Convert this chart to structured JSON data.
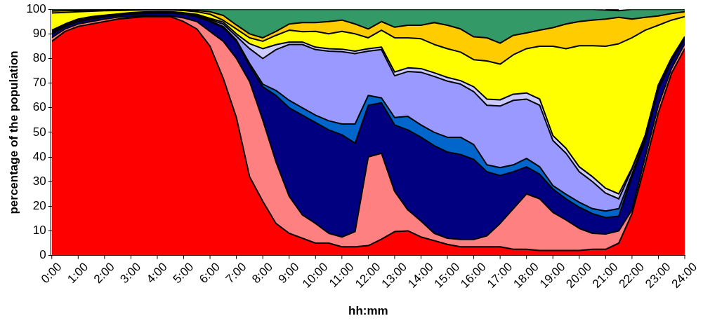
{
  "chart_data": {
    "type": "area",
    "stacked": true,
    "xlabel": "hh:mm",
    "ylabel": "percentage of the population",
    "x": [
      0,
      0.5,
      1,
      1.5,
      2,
      2.5,
      3,
      3.5,
      4,
      4.5,
      5,
      5.5,
      6,
      6.5,
      7,
      7.5,
      8,
      8.5,
      9,
      9.5,
      10,
      10.5,
      11,
      11.5,
      12,
      12.5,
      13,
      13.5,
      14,
      14.5,
      15,
      15.5,
      16,
      16.5,
      17,
      17.5,
      18,
      18.5,
      19,
      19.5,
      20,
      20.5,
      21,
      21.5,
      22,
      22.5,
      23,
      23.5,
      24
    ],
    "xlim": [
      0,
      24
    ],
    "xticks": [
      {
        "value": 0,
        "label": "0:00"
      },
      {
        "value": 1,
        "label": "1:00"
      },
      {
        "value": 2,
        "label": "2:00"
      },
      {
        "value": 3,
        "label": "3:00"
      },
      {
        "value": 4,
        "label": "4:00"
      },
      {
        "value": 5,
        "label": "5:00"
      },
      {
        "value": 6,
        "label": "6:00"
      },
      {
        "value": 7,
        "label": "7:00"
      },
      {
        "value": 8,
        "label": "8:00"
      },
      {
        "value": 9,
        "label": "9:00"
      },
      {
        "value": 10,
        "label": "10:00"
      },
      {
        "value": 11,
        "label": "11:00"
      },
      {
        "value": 12,
        "label": "12:00"
      },
      {
        "value": 13,
        "label": "13:00"
      },
      {
        "value": 14,
        "label": "14:00"
      },
      {
        "value": 15,
        "label": "15:00"
      },
      {
        "value": 16,
        "label": "16:00"
      },
      {
        "value": 17,
        "label": "17:00"
      },
      {
        "value": 18,
        "label": "18:00"
      },
      {
        "value": 19,
        "label": "19:00"
      },
      {
        "value": 20,
        "label": "20:00"
      },
      {
        "value": 21,
        "label": "21:00"
      },
      {
        "value": 22,
        "label": "22:00"
      },
      {
        "value": 23,
        "label": "23:00"
      },
      {
        "value": 24,
        "label": "24:00"
      }
    ],
    "ylim": [
      0,
      100
    ],
    "yticks": [
      0,
      10,
      20,
      30,
      40,
      50,
      60,
      70,
      80,
      90,
      100
    ],
    "grid": false,
    "legend": false,
    "marker": "none",
    "series": [
      {
        "color": "#ff0000",
        "values": [
          87,
          91,
          93,
          94,
          95,
          96,
          96.5,
          97,
          97,
          97,
          95,
          92,
          85,
          72,
          56,
          32,
          22,
          13,
          9,
          7,
          5,
          5,
          3.5,
          3.5,
          4,
          6.6,
          9.7,
          10,
          7.5,
          6,
          4.5,
          3.5,
          3.5,
          3.5,
          3.5,
          2.5,
          2.5,
          2,
          2,
          2,
          2,
          2.5,
          2.5,
          5,
          17,
          37,
          58,
          74,
          84
        ]
      },
      {
        "color": "#ff8080",
        "values": [
          1.5,
          1,
          1,
          1,
          1,
          0.8,
          0.5,
          0.3,
          0.3,
          0.3,
          1.5,
          3,
          6,
          15,
          24,
          38.6,
          33,
          25,
          15,
          9.5,
          8,
          4,
          4,
          6.2,
          36,
          34.9,
          16.3,
          8.5,
          6.5,
          3,
          2.5,
          3,
          3,
          4.5,
          9.5,
          16.5,
          22.5,
          21,
          15.5,
          12.4,
          9,
          6.5,
          6.2,
          5,
          1.5,
          3,
          3,
          2,
          2
        ]
      },
      {
        "color": "#000080",
        "values": [
          1.5,
          1,
          1,
          1,
          1,
          0.7,
          1,
          1,
          1.2,
          1.2,
          1.5,
          2,
          4,
          5.5,
          7,
          6.4,
          13.5,
          27,
          36,
          40.5,
          41,
          42,
          41.5,
          35.9,
          21,
          20.5,
          27,
          32.5,
          34,
          35.6,
          35,
          34.5,
          32.5,
          26,
          19.5,
          15,
          11,
          10,
          9.5,
          8.6,
          8.6,
          8,
          6.7,
          6,
          13.5,
          6.5,
          6.5,
          3,
          2
        ]
      },
      {
        "color": "#0066cc",
        "values": [
          0.5,
          0.3,
          0.3,
          0.3,
          0.2,
          0.2,
          0.2,
          0.2,
          0.2,
          0.2,
          0.2,
          0.3,
          0.3,
          0.5,
          0.5,
          1,
          1.1,
          2,
          3,
          3,
          3,
          3.7,
          4.4,
          7.8,
          4,
          2,
          3,
          5.5,
          5,
          5.4,
          6,
          7,
          6,
          2.8,
          3.2,
          2.8,
          3.4,
          3,
          1.4,
          1.8,
          2,
          2,
          2.6,
          3,
          1,
          1,
          0.5,
          0.5,
          0.3
        ]
      },
      {
        "color": "#9999ff",
        "values": [
          0.5,
          0.3,
          0.3,
          0.3,
          0.2,
          0.2,
          0.2,
          0.2,
          0.2,
          0.2,
          0.2,
          0.3,
          0.5,
          1,
          1.5,
          6,
          10.4,
          16.6,
          22.7,
          25.7,
          26.6,
          28.3,
          29.4,
          28.6,
          18,
          19.6,
          17,
          18.2,
          21.4,
          22.7,
          22.8,
          21.6,
          21.5,
          24.2,
          25,
          26.2,
          24.1,
          25,
          18.3,
          16.7,
          12.4,
          11,
          7.3,
          4,
          2,
          1,
          1,
          0.5,
          0.3
        ]
      },
      {
        "color": "#ccccff",
        "values": [
          0.5,
          0.4,
          0.4,
          0.4,
          0.2,
          0.2,
          0.2,
          0.2,
          0.1,
          0.1,
          0.2,
          0.3,
          0.5,
          0.8,
          1,
          2,
          4,
          2,
          1,
          1,
          1,
          1,
          1,
          1,
          1,
          1,
          1.5,
          1.5,
          1.5,
          1.5,
          1.5,
          1.4,
          2,
          2.5,
          2.5,
          2.5,
          2.5,
          2.5,
          2,
          2,
          2,
          2,
          2,
          2,
          0.5,
          0.3,
          0.3,
          0.3,
          0.3
        ]
      },
      {
        "color": "#ffff00",
        "values": [
          7,
          4.7,
          3,
          2.2,
          1.8,
          1.4,
          1,
          0.8,
          0.7,
          0.7,
          0.9,
          1.1,
          1.7,
          0.7,
          2,
          2.4,
          3,
          3.8,
          4.8,
          4.2,
          6.4,
          6,
          7.2,
          7,
          4.4,
          6.9,
          13.9,
          12.2,
          12.1,
          11.5,
          11.7,
          11.6,
          11,
          15.5,
          14.5,
          16,
          18,
          21.5,
          36.3,
          40.5,
          49.2,
          53.2,
          57.7,
          61,
          52.9,
          42.7,
          24.2,
          15.3,
          8.1
        ]
      },
      {
        "color": "#ffcc00",
        "values": [
          0.8,
          0.7,
          0.5,
          0.4,
          0.3,
          0.3,
          0.2,
          0.2,
          0.2,
          0.2,
          0.3,
          0.5,
          1,
          2,
          1.6,
          1.6,
          1.4,
          1.6,
          2.5,
          3.7,
          3.6,
          5,
          4.6,
          4,
          3.6,
          3.5,
          4.3,
          5.1,
          5.5,
          8.9,
          9.5,
          9.4,
          9.3,
          9.4,
          8.5,
          7.9,
          6.4,
          6.5,
          7.5,
          10,
          9.8,
          10.4,
          11,
          10.7,
          7.6,
          5.2,
          3.8,
          2.7,
          2
        ]
      },
      {
        "color": "#339966",
        "values": [
          0.7,
          0.6,
          0.5,
          0.4,
          0.3,
          0.2,
          0.2,
          0.1,
          0.1,
          0.1,
          0.2,
          0.5,
          1,
          2.5,
          6.4,
          10,
          11.6,
          9,
          6,
          5.4,
          5.4,
          5,
          4.4,
          6,
          8,
          5,
          7.3,
          6.5,
          6.5,
          5.4,
          6.5,
          8,
          11.2,
          11.6,
          13.8,
          10.6,
          9.6,
          8.5,
          7.5,
          6,
          5,
          4.4,
          3.7,
          2.7,
          4,
          3.3,
          2.7,
          1.7,
          1
        ]
      },
      {
        "color": "#ff00ff",
        "values": [
          null,
          null,
          null,
          null,
          null,
          null,
          null,
          null,
          null,
          null,
          null,
          null,
          null,
          null,
          null,
          null,
          null,
          null,
          null,
          null,
          null,
          null,
          null,
          null,
          null,
          null,
          null,
          null,
          null,
          null,
          null,
          null,
          null,
          null,
          null,
          null,
          null,
          null,
          null,
          null,
          null,
          null,
          0.3,
          0.6,
          null,
          null,
          null,
          null,
          null
        ]
      }
    ]
  }
}
